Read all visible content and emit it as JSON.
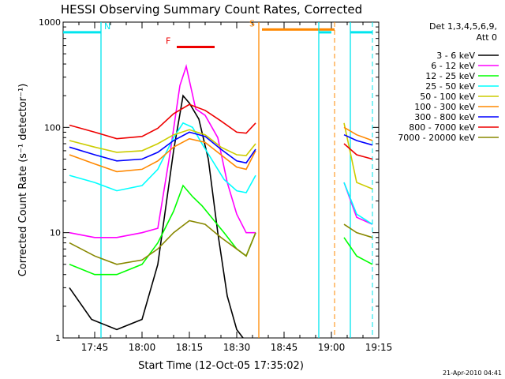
{
  "chart_data": {
    "type": "line",
    "title": "HESSI Observing Summary Count Rates, Corrected",
    "xlabel": "Start Time (12-Oct-05 17:35:02)",
    "ylabel": "Corrected Count Rate (s⁻¹ detector⁻¹)",
    "yscale": "log",
    "xlim": [
      "17:35",
      "19:15"
    ],
    "ylim": [
      1,
      1000
    ],
    "x_ticks": [
      "17:45",
      "18:00",
      "18:15",
      "18:30",
      "18:45",
      "19:00",
      "19:15"
    ],
    "y_ticks": [
      "1",
      "10",
      "100",
      "1000"
    ],
    "grid": false,
    "legend_position": "right",
    "legend_header": [
      "Det 1,3,4,5,6,9,",
      "Att 0"
    ],
    "timestamp": "21-Apr-2010 04:41",
    "series": [
      {
        "name": "3 - 6 keV",
        "color": "#000000",
        "x": [
          "17:37",
          "17:44",
          "17:52",
          "18:00",
          "18:05",
          "18:10",
          "18:13",
          "18:15",
          "18:18",
          "18:21",
          "18:24",
          "18:27",
          "18:30",
          "18:32"
        ],
        "values": [
          3,
          1.5,
          1.2,
          1.5,
          5,
          60,
          200,
          170,
          120,
          50,
          10,
          2.5,
          1.2,
          1
        ]
      },
      {
        "name": "6 - 12 keV",
        "color": "#ff00ff",
        "x": [
          "17:37",
          "17:45",
          "17:52",
          "18:00",
          "18:05",
          "18:09",
          "18:12",
          "18:14",
          "18:17",
          "18:20",
          "18:24",
          "18:27",
          "18:30",
          "18:33",
          "18:36",
          "19:04",
          "19:08",
          "19:13"
        ],
        "values": [
          10,
          9,
          9,
          10,
          11,
          60,
          250,
          380,
          150,
          130,
          80,
          30,
          15,
          10,
          10,
          30,
          14,
          12
        ]
      },
      {
        "name": "12 - 25 keV",
        "color": "#00ff00",
        "x": [
          "17:37",
          "17:45",
          "17:52",
          "18:00",
          "18:05",
          "18:10",
          "18:13",
          "18:16",
          "18:19",
          "18:22",
          "18:26",
          "18:30",
          "18:33",
          "18:36",
          "19:04",
          "19:08",
          "19:13"
        ],
        "values": [
          5,
          4,
          4,
          5,
          8,
          16,
          28,
          22,
          18,
          14,
          10,
          7,
          6,
          10,
          9,
          6,
          5
        ]
      },
      {
        "name": "25 - 50 keV",
        "color": "#00ffff",
        "x": [
          "17:37",
          "17:45",
          "17:52",
          "18:00",
          "18:05",
          "18:10",
          "18:13",
          "18:16",
          "18:19",
          "18:22",
          "18:26",
          "18:30",
          "18:33",
          "18:36",
          "19:04",
          "19:08",
          "19:13"
        ],
        "values": [
          35,
          30,
          25,
          28,
          40,
          80,
          110,
          100,
          70,
          50,
          32,
          25,
          24,
          35,
          30,
          15,
          12
        ]
      },
      {
        "name": "50 - 100 keV",
        "color": "#cccc00",
        "x": [
          "17:37",
          "17:45",
          "17:52",
          "18:00",
          "18:05",
          "18:10",
          "18:15",
          "18:20",
          "18:25",
          "18:30",
          "18:33",
          "18:36",
          "19:04",
          "19:08",
          "19:13"
        ],
        "values": [
          75,
          65,
          58,
          60,
          70,
          85,
          95,
          85,
          65,
          55,
          54,
          70,
          110,
          30,
          26
        ]
      },
      {
        "name": "100 - 300 keV",
        "color": "#ff8800",
        "x": [
          "17:37",
          "17:45",
          "17:52",
          "18:00",
          "18:05",
          "18:10",
          "18:15",
          "18:20",
          "18:25",
          "18:30",
          "18:33",
          "18:36",
          "19:04",
          "19:08",
          "19:13"
        ],
        "values": [
          55,
          45,
          38,
          40,
          48,
          65,
          78,
          72,
          55,
          42,
          40,
          60,
          100,
          85,
          75
        ]
      },
      {
        "name": "300 - 800 keV",
        "color": "#0000ff",
        "x": [
          "17:37",
          "17:45",
          "17:52",
          "18:00",
          "18:05",
          "18:10",
          "18:15",
          "18:20",
          "18:25",
          "18:30",
          "18:33",
          "18:36",
          "19:04",
          "19:08",
          "19:13"
        ],
        "values": [
          65,
          55,
          48,
          50,
          58,
          75,
          90,
          82,
          62,
          48,
          46,
          62,
          85,
          75,
          68
        ]
      },
      {
        "name": "800 - 7000 keV",
        "color": "#ee0000",
        "x": [
          "17:37",
          "17:45",
          "17:52",
          "18:00",
          "18:05",
          "18:10",
          "18:15",
          "18:20",
          "18:25",
          "18:30",
          "18:33",
          "18:36",
          "19:04",
          "19:08",
          "19:13"
        ],
        "values": [
          105,
          90,
          78,
          82,
          98,
          135,
          165,
          145,
          115,
          90,
          88,
          110,
          70,
          55,
          50
        ]
      },
      {
        "name": "7000 - 20000 keV",
        "color": "#888800",
        "x": [
          "17:37",
          "17:45",
          "17:52",
          "18:00",
          "18:05",
          "18:10",
          "18:15",
          "18:20",
          "18:25",
          "18:30",
          "18:33",
          "18:36",
          "19:04",
          "19:08",
          "19:13"
        ],
        "values": [
          8,
          6,
          5,
          5.5,
          7,
          10,
          13,
          12,
          9,
          7,
          6,
          10,
          12,
          10,
          9
        ]
      }
    ],
    "annotations": [
      {
        "text": "N",
        "color": "#00e5ee",
        "x_start": "17:35",
        "x_end": "17:47",
        "x_line": "17:47",
        "value": 800
      },
      {
        "text": "F",
        "color": "#ee0000",
        "x_start": "18:11",
        "x_end": "18:23",
        "value": 580
      },
      {
        "text": "S",
        "color": "#ff8800",
        "x_start": "18:38",
        "x_end": "19:01",
        "x_line": "18:37",
        "x_dashed": "19:01",
        "value": 850
      },
      {
        "text": "",
        "color": "#00e5ee",
        "x_start": "18:56",
        "x_end": "19:00",
        "x_line": "18:56",
        "value": 800
      },
      {
        "text": "",
        "color": "#00e5ee",
        "x_start": "19:06",
        "x_end": "19:13",
        "x_line": "19:06",
        "x_dashed": "19:13",
        "value": 800
      }
    ]
  }
}
